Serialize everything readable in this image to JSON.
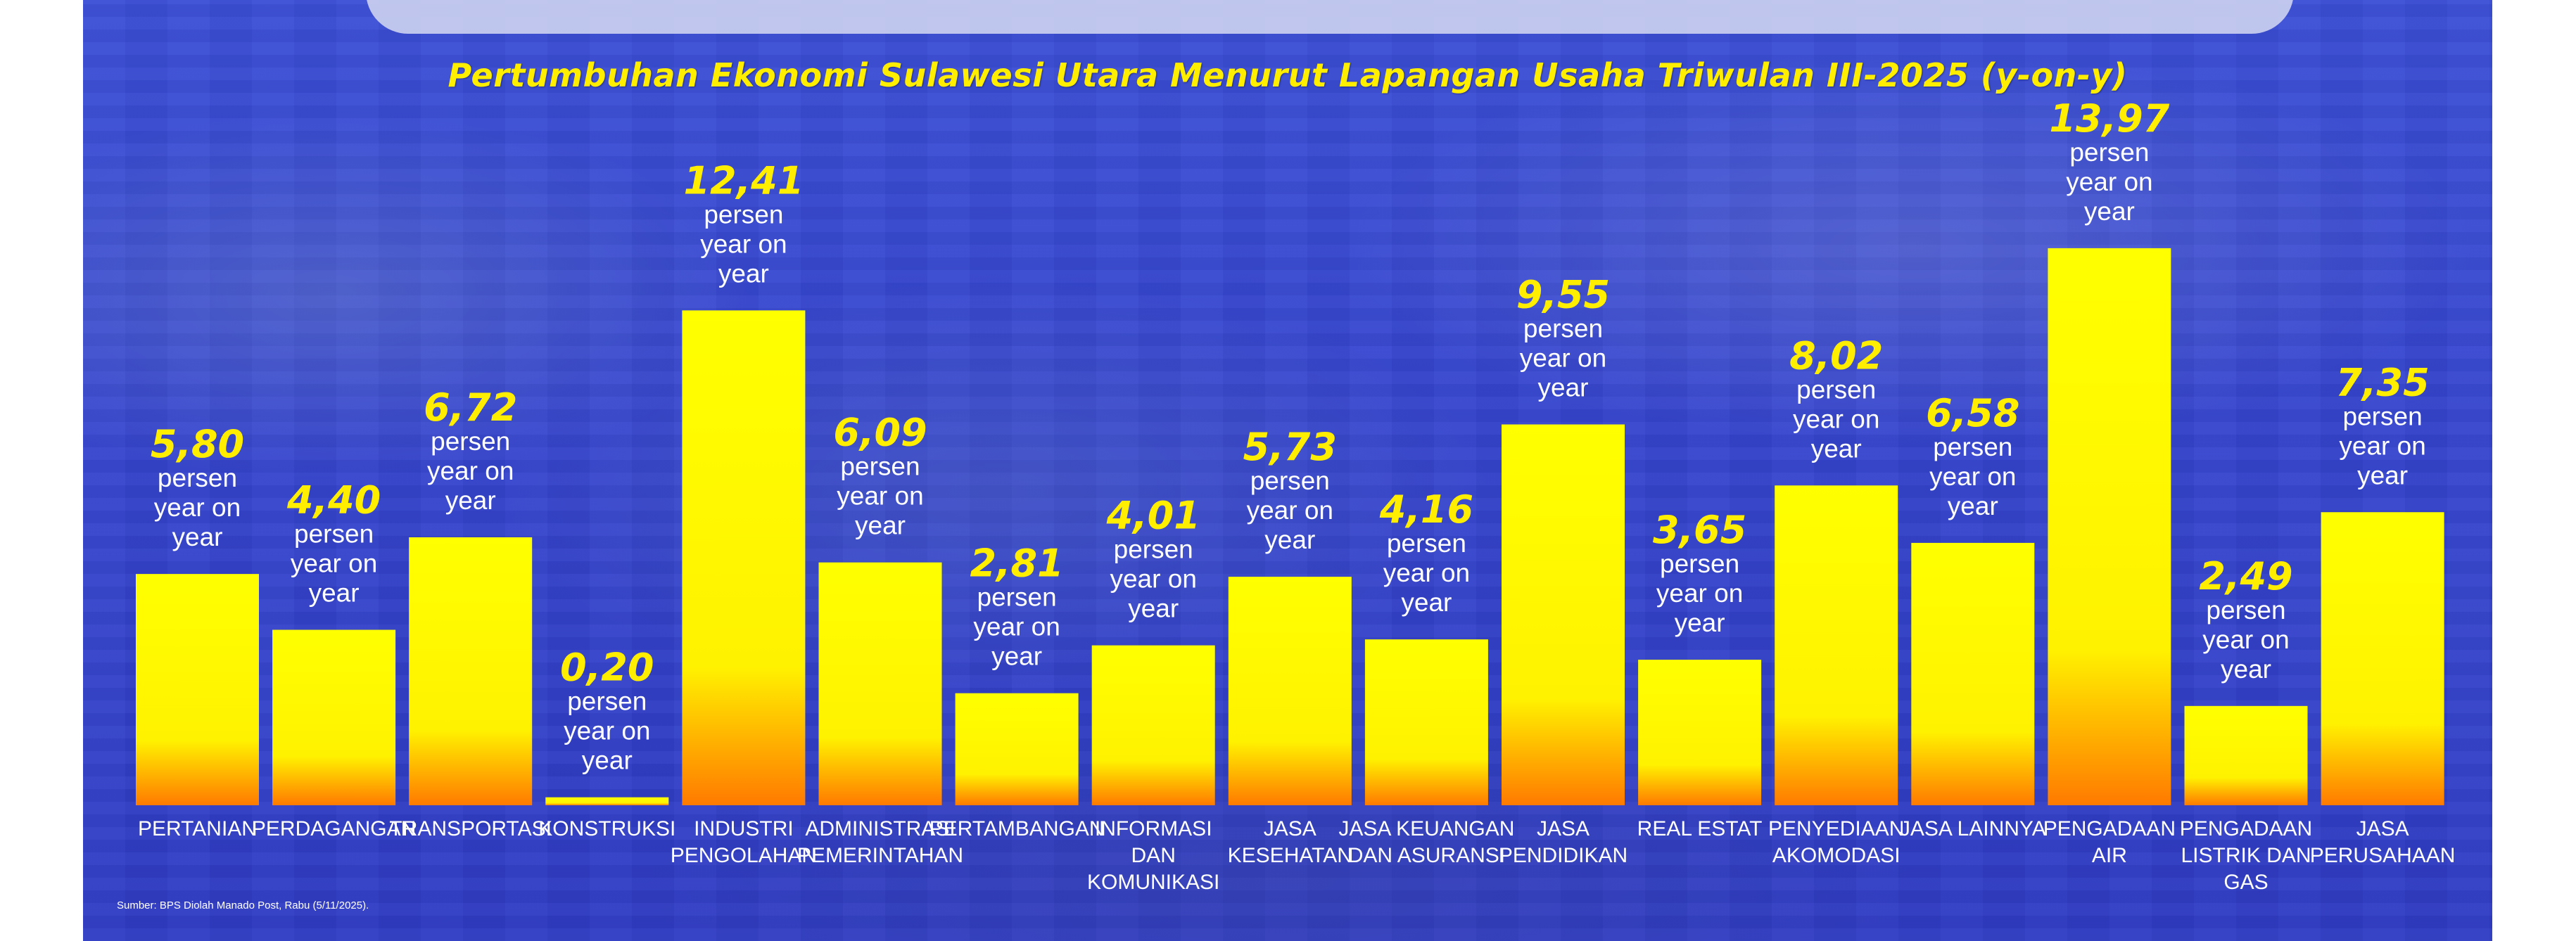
{
  "chart_data": {
    "type": "bar",
    "title": "Pertumbuhan Ekonomi Sulawesi Utara Menurut Lapangan Usaha Triwulan III-2025 (y-on-y)",
    "categories": [
      [
        "PERTANIAN"
      ],
      [
        "PERDAGANGAN"
      ],
      [
        "TRANSPORTASI"
      ],
      [
        "KONSTRUKSI"
      ],
      [
        "INDUSTRI",
        "PENGOLAHAN"
      ],
      [
        "ADMINISTRASI",
        "PEMERINTAHAN"
      ],
      [
        "PERTAMBANGAN"
      ],
      [
        "INFORMASI",
        "DAN",
        "KOMUNIKASI"
      ],
      [
        "JASA",
        "KESEHATAN"
      ],
      [
        "JASA KEUANGAN",
        "DAN ASURANSI"
      ],
      [
        "JASA",
        "PENDIDIKAN"
      ],
      [
        "REAL ESTAT"
      ],
      [
        "PENYEDIAAN",
        "AKOMODASI"
      ],
      [
        "JASA LAINNYA"
      ],
      [
        "PENGADAAN",
        "AIR"
      ],
      [
        "PENGADAAN",
        "LISTRIK DAN",
        "GAS"
      ],
      [
        "JASA",
        "PERUSAHAAN"
      ]
    ],
    "values": [
      5.8,
      4.4,
      6.72,
      0.2,
      12.41,
      6.09,
      2.81,
      4.01,
      5.73,
      4.16,
      9.55,
      3.65,
      8.02,
      6.58,
      13.97,
      2.49,
      7.35
    ],
    "value_labels": [
      "5,80",
      "4,40",
      "6,72",
      "0,20",
      "12,41",
      "6,09",
      "2,81",
      "4,01",
      "5,73",
      "4,16",
      "9,55",
      "3,65",
      "8,02",
      "6,58",
      "13,97",
      "2,49",
      "7,35"
    ],
    "unit_label": [
      "persen",
      "year on",
      "year"
    ],
    "ylim": [
      0,
      14
    ],
    "grid": false,
    "legend": "none",
    "colors": {
      "bar_top": "#ffff00",
      "bar_bottom": "#ff7a00",
      "value_text": "#ffee00",
      "background": "#3646cf"
    }
  },
  "source_note": "Sumber: BPS Diolah Manado Post, Rabu (5/11/2025)."
}
